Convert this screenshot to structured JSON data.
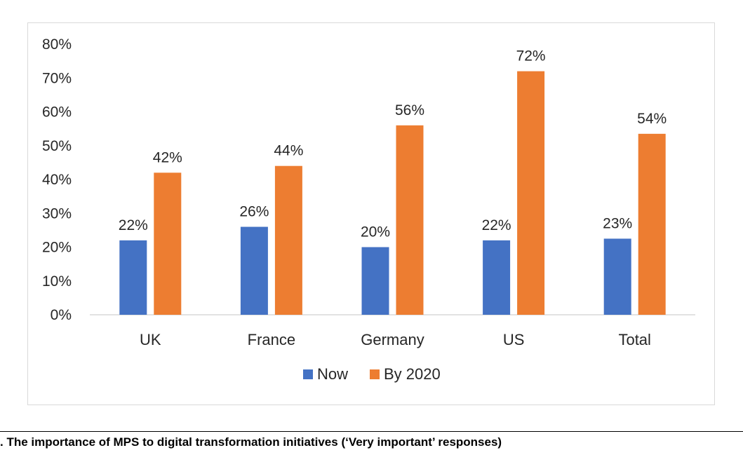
{
  "chart_data": {
    "type": "bar",
    "title": "",
    "xlabel": "",
    "ylabel": "",
    "categories": [
      "UK",
      "France",
      "Germany",
      "US",
      "Total"
    ],
    "series": [
      {
        "name": "Now",
        "color": "#4472c4",
        "values": [
          22,
          26,
          20,
          22,
          22.5
        ],
        "labels": [
          "22%",
          "26%",
          "20%",
          "22%",
          "23%"
        ]
      },
      {
        "name": "By 2020",
        "color": "#ed7d31",
        "values": [
          42,
          44,
          56,
          72,
          53.5
        ],
        "labels": [
          "42%",
          "44%",
          "56%",
          "72%",
          "54%"
        ]
      }
    ],
    "ylim": [
      0,
      80
    ],
    "ytick_labels": [
      "0%",
      "10%",
      "20%",
      "30%",
      "40%",
      "50%",
      "60%",
      "70%",
      "80%"
    ],
    "grid": false,
    "legend_position": "bottom"
  },
  "caption": ". The importance of MPS to digital transformation initiatives (‘Very important’ responses)"
}
